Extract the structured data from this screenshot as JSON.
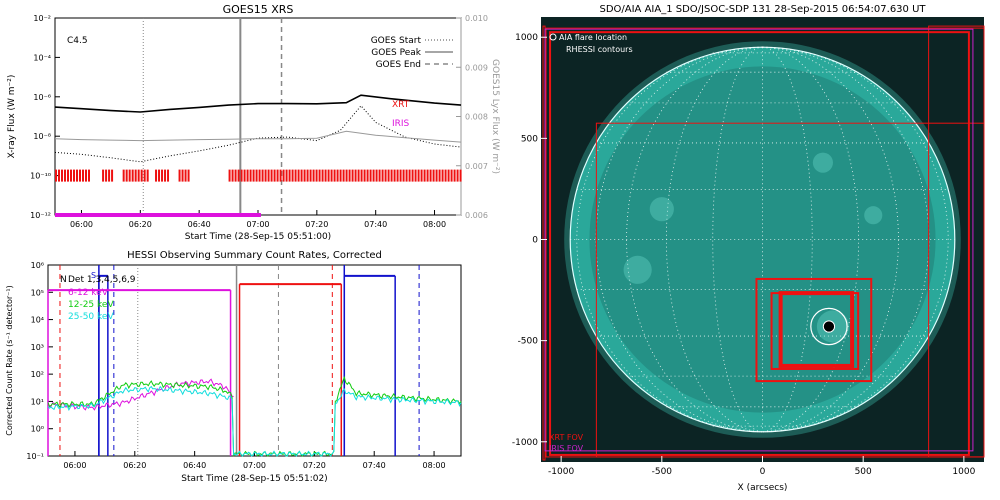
{
  "chart_data": [
    {
      "type": "line",
      "title": "GOES15 XRS",
      "xlabel": "Start Time (28-Sep-15 05:51:00)",
      "ylabel": "X-ray Flux (W m⁻²)",
      "ylabel_right": "GOES15 Lyx Flux (W m⁻²)",
      "xlim": [
        "05:51",
        "08:09"
      ],
      "ylim": [
        1e-12,
        0.01
      ],
      "yscale": "log",
      "ylim_right": [
        0.006,
        0.01
      ],
      "x_ticks": [
        "06:00",
        "06:20",
        "06:40",
        "07:00",
        "07:20",
        "07:40",
        "08:00"
      ],
      "y_ticks": [
        "10⁻¹²",
        "10⁻¹⁰",
        "10⁻⁸",
        "10⁻⁶",
        "10⁻⁴",
        "10⁻²"
      ],
      "y_ticks_right": [
        "0.006",
        "0.007",
        "0.008",
        "0.009",
        "0.010"
      ],
      "flare_class": "C4.5",
      "legend": [
        {
          "label": "GOES Start",
          "style": "dotted",
          "color": "#888888"
        },
        {
          "label": "GOES Peak",
          "style": "solid",
          "color": "#888888"
        },
        {
          "label": "GOES End",
          "style": "dashed",
          "color": "#888888"
        }
      ],
      "markers": {
        "goes_start": "06:21",
        "goes_peak": "06:54",
        "goes_end": "07:08"
      },
      "instrument_labels": [
        {
          "name": "XRT",
          "color": "#ee1111"
        },
        {
          "name": "IRIS",
          "color": "#dd11dd"
        }
      ],
      "series": [
        {
          "name": "long",
          "color": "#000000",
          "style": "solid",
          "x": [
            "05:51",
            "06:00",
            "06:10",
            "06:20",
            "06:30",
            "06:40",
            "06:50",
            "07:00",
            "07:10",
            "07:20",
            "07:30",
            "07:35",
            "07:45",
            "08:00",
            "08:09"
          ],
          "y": [
            3e-07,
            2.5e-07,
            2e-07,
            1.7e-07,
            2.3e-07,
            2.9e-07,
            3.8e-07,
            4.5e-07,
            4.5e-07,
            4.4e-07,
            5e-07,
            1.2e-06,
            8e-07,
            4.8e-07,
            3.8e-07
          ]
        },
        {
          "name": "short",
          "color": "#000000",
          "style": "dotted",
          "x": [
            "05:51",
            "06:00",
            "06:10",
            "06:20",
            "06:30",
            "06:40",
            "06:50",
            "07:00",
            "07:10",
            "07:20",
            "07:28",
            "07:35",
            "07:40",
            "07:50",
            "08:00",
            "08:09"
          ],
          "y": [
            1.5e-09,
            1.2e-09,
            8e-10,
            5e-10,
            1e-09,
            1.8e-09,
            3.5e-09,
            8e-09,
            9e-09,
            6e-09,
            2e-08,
            3.5e-07,
            5e-08,
            9e-09,
            4e-09,
            2.8e-09
          ]
        },
        {
          "name": "Lyman-alpha",
          "color": "#999999",
          "style": "solid",
          "x": [
            "05:51",
            "06:00",
            "06:10",
            "06:20",
            "06:30",
            "06:40",
            "06:50",
            "07:00",
            "07:10",
            "07:20",
            "07:30",
            "07:40",
            "07:50",
            "08:00",
            "08:09"
          ],
          "y": [
            0.00755,
            0.00753,
            0.00752,
            0.00751,
            0.00752,
            0.00753,
            0.00754,
            0.00755,
            0.00755,
            0.00756,
            0.0077,
            0.00762,
            0.00757,
            0.00752,
            0.00748
          ]
        }
      ],
      "coverage": [
        {
          "name": "XRT",
          "color": "#ee1111",
          "intervals": [
            [
              "05:51",
              "06:03"
            ],
            [
              "06:07",
              "06:11"
            ],
            [
              "06:14",
              "06:23"
            ],
            [
              "06:25",
              "06:30"
            ],
            [
              "06:33",
              "06:37"
            ],
            [
              "06:50",
              "08:09"
            ]
          ]
        },
        {
          "name": "IRIS",
          "color": "#dd11dd",
          "intervals": [
            [
              "05:51",
              "07:01"
            ]
          ]
        }
      ]
    },
    {
      "type": "line",
      "title": "HESSI Observing Summary Count Rates, Corrected",
      "xlabel": "Start Time (28-Sep-15 05:51:02)",
      "ylabel": "Corrected Count Rate (s⁻¹ detector⁻¹)",
      "xlim": [
        "05:51",
        "08:09"
      ],
      "ylim": [
        0.1,
        1000000.0
      ],
      "yscale": "log",
      "x_ticks": [
        "06:00",
        "06:20",
        "06:40",
        "07:00",
        "07:20",
        "07:40",
        "08:00"
      ],
      "y_ticks": [
        "10⁻¹",
        "10⁰",
        "10¹",
        "10²",
        "10³",
        "10⁴",
        "10⁵",
        "10⁶"
      ],
      "legend_title": "Det 1,3,4,5,6,9",
      "flag_labels": [
        "N",
        "S"
      ],
      "series": [
        {
          "name": "6-12 keV",
          "color": "#dd11dd",
          "x": [
            "05:51",
            "06:06",
            "06:16",
            "06:25",
            "06:35",
            "06:45",
            "06:50",
            "06:53"
          ],
          "y": [
            8,
            6,
            9,
            20,
            45,
            55,
            35,
            15
          ]
        },
        {
          "name": "12-25 keV",
          "color": "#11cc11",
          "x": [
            "05:51",
            "06:06",
            "06:16",
            "06:25",
            "06:35",
            "06:45",
            "06:50",
            "06:53",
            "07:27",
            "07:30",
            "07:34",
            "07:47",
            "08:09"
          ],
          "y": [
            8,
            8,
            40,
            45,
            40,
            35,
            25,
            15,
            10,
            70,
            20,
            15,
            10
          ]
        },
        {
          "name": "25-50 keV",
          "color": "#11dddd",
          "x": [
            "05:51",
            "06:06",
            "06:16",
            "06:25",
            "06:35",
            "06:45",
            "06:50",
            "06:53",
            "07:27",
            "07:30",
            "07:34",
            "07:47",
            "08:09"
          ],
          "y": [
            6,
            7,
            25,
            30,
            25,
            20,
            15,
            12,
            8,
            25,
            15,
            12,
            9
          ]
        }
      ],
      "state_lines": [
        {
          "name": "attenuator",
          "color": "#ee1111",
          "intervals": [
            [
              "06:55",
              "07:29"
            ]
          ],
          "level": 200000
        },
        {
          "name": "saac",
          "color": "#1111cc",
          "intervals": [
            [
              "06:08",
              "06:11"
            ],
            [
              "07:30",
              "07:47"
            ]
          ],
          "level": 400000
        },
        {
          "name": "decimation",
          "color": "#dd11dd",
          "intervals": [
            [
              "05:51",
              "06:52"
            ]
          ],
          "level": 120000
        }
      ],
      "vertical_markers": [
        {
          "time": "05:55",
          "color": "#ee1111",
          "style": "dashed"
        },
        {
          "time": "06:08",
          "color": "#1111cc",
          "style": "solid"
        },
        {
          "time": "06:13",
          "color": "#1111cc",
          "style": "dashed"
        },
        {
          "time": "06:21",
          "color": "#888888",
          "style": "dotted"
        },
        {
          "time": "06:54",
          "color": "#888888",
          "style": "solid"
        },
        {
          "time": "07:08",
          "color": "#888888",
          "style": "dashed"
        },
        {
          "time": "07:26",
          "color": "#ee1111",
          "style": "dashed"
        },
        {
          "time": "07:30",
          "color": "#1111cc",
          "style": "solid"
        },
        {
          "time": "07:55",
          "color": "#1111cc",
          "style": "dashed"
        }
      ]
    },
    {
      "type": "scatter",
      "title": "SDO/AIA AIA_1 SDO/JSOC-SDP 131 28-Sep-2015 06:54:07.630 UT",
      "xlabel": "X (arcsecs)",
      "ylabel": "",
      "xlim": [
        -1100,
        1100
      ],
      "ylim": [
        -1100,
        1100
      ],
      "x_ticks": [
        "-1000",
        "-500",
        "0",
        "500",
        "1000"
      ],
      "y_ticks": [
        "-1000",
        "-500",
        "0",
        "500",
        "1000"
      ],
      "disk_radius": 955,
      "background_color": "#0c2424",
      "disk_color": "#2aa89a",
      "legend_top": [
        {
          "label": "AIA flare location",
          "marker": "circle",
          "color": "#ffffff"
        },
        {
          "label": "RHESSI contours",
          "marker": "none",
          "color": "#ffffff"
        }
      ],
      "legend_bottom": [
        {
          "label": "XRT FOV",
          "color": "#ee1111"
        },
        {
          "label": "IRIS FOV",
          "color": "#cc22cc"
        }
      ],
      "flare_location": [
        330,
        -430
      ],
      "aia_circle_radius": 90,
      "rhessi_contour_radius": 28,
      "fov_rectangles": [
        {
          "name": "XRT",
          "color": "#ee1111",
          "width": 2,
          "corners": [
            [
              -1055,
              -1065
            ],
            [
              1025,
              1025
            ]
          ]
        },
        {
          "name": "XRT",
          "color": "#ee1111",
          "width": 1,
          "corners": [
            [
              -1075,
              -1075
            ],
            [
              1100,
              1045
            ]
          ]
        },
        {
          "name": "XRT",
          "color": "#ee1111",
          "width": 1,
          "corners": [
            [
              -825,
              -1075
            ],
            [
              1100,
              575
            ]
          ]
        },
        {
          "name": "XRT",
          "color": "#ee1111",
          "width": 1,
          "corners": [
            [
              -1090,
              -1090
            ],
            [
              -1080,
              1055
            ]
          ]
        },
        {
          "name": "XRT",
          "color": "#ee1111",
          "width": 1,
          "corners": [
            [
              825,
              -1075
            ],
            [
              1100,
              1055
            ]
          ]
        },
        {
          "name": "XRT",
          "color": "#ee1111",
          "width": 2,
          "corners": [
            [
              -30,
              -700
            ],
            [
              540,
              -195
            ]
          ]
        },
        {
          "name": "XRT",
          "color": "#ee1111",
          "width": 2,
          "corners": [
            [
              45,
              -640
            ],
            [
              475,
              -265
            ]
          ]
        },
        {
          "name": "XRT",
          "color": "#ee1111",
          "width": 4,
          "corners": [
            [
              90,
              -625
            ],
            [
              445,
              -265
            ]
          ]
        },
        {
          "name": "IRIS",
          "color": "#cc22cc",
          "corners": [
            [
              -1080,
              -1045
            ],
            [
              1045,
              1040
            ]
          ]
        }
      ]
    }
  ]
}
